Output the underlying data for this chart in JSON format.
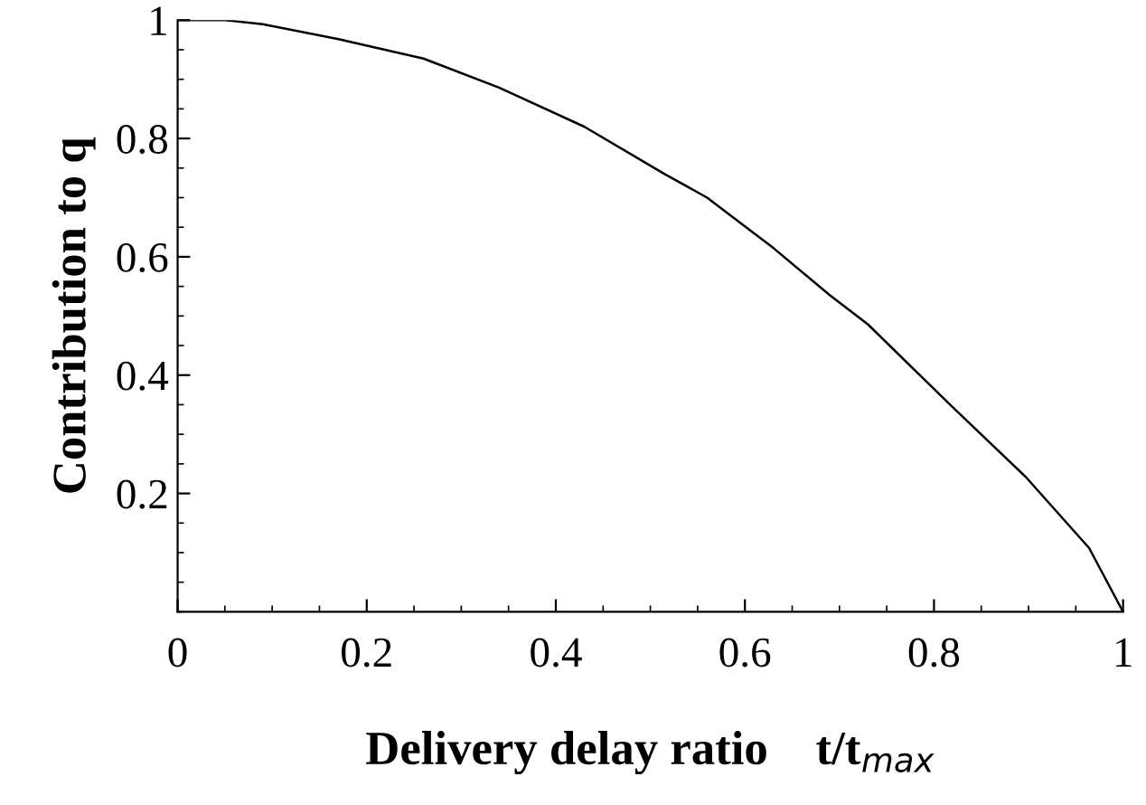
{
  "chart_data": {
    "type": "line",
    "xlabel": "Delivery delay ratio    t/t$_{max}$",
    "ylabel": "Contribution to q",
    "x": [
      0,
      0.05,
      0.09,
      0.17,
      0.26,
      0.34,
      0.43,
      0.515,
      0.56,
      0.63,
      0.69,
      0.73,
      0.817,
      0.897,
      0.964,
      1
    ],
    "series": [
      {
        "color": "#000000",
        "values": [
          1.0,
          1.0,
          0.993,
          0.968,
          0.935,
          0.886,
          0.82,
          0.74,
          0.7,
          0.615,
          0.535,
          0.486,
          0.35,
          0.228,
          0.108,
          0
        ]
      }
    ],
    "xlim": [
      0,
      1
    ],
    "ylim": [
      0,
      1
    ],
    "xticks": [
      0,
      0.2,
      0.4,
      0.6,
      0.8,
      1
    ],
    "yticks": [
      0.2,
      0.4,
      0.6,
      0.8,
      1
    ],
    "grid": false,
    "legend": false,
    "marker": "none",
    "line_style": "solid"
  }
}
